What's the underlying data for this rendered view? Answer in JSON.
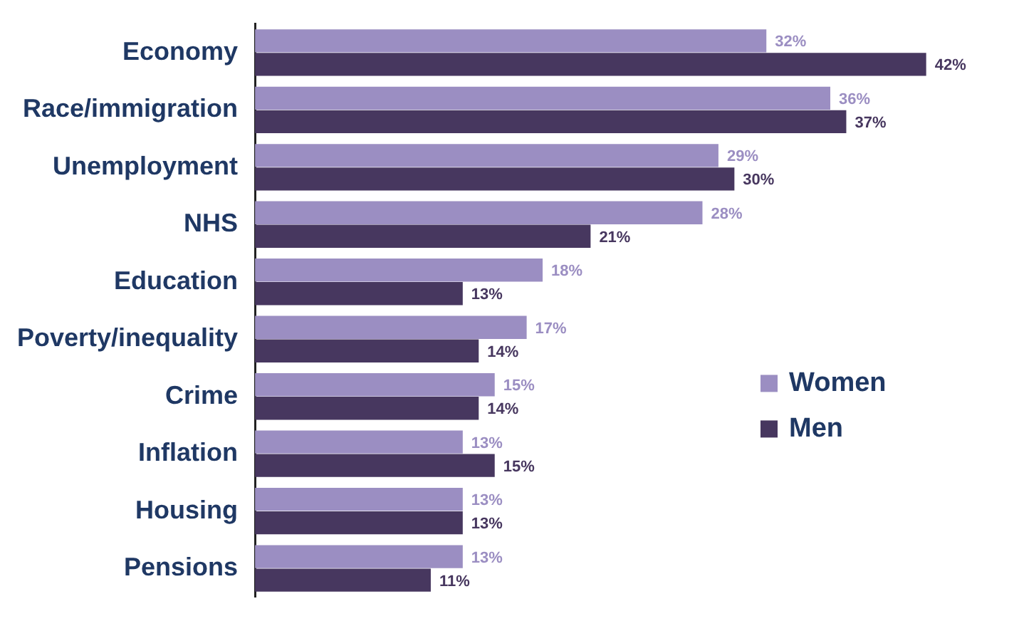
{
  "chart_data": {
    "type": "bar",
    "orientation": "horizontal",
    "categories": [
      "Economy",
      "Race/immigration",
      "Unemployment",
      "NHS",
      "Education",
      "Poverty/inequality",
      "Crime",
      "Inflation",
      "Housing",
      "Pensions"
    ],
    "series": [
      {
        "name": "Women",
        "color": "#9b8ec2",
        "values": [
          32,
          36,
          29,
          28,
          18,
          17,
          15,
          13,
          13,
          13
        ],
        "value_labels": [
          "32%",
          "36%",
          "29%",
          "28%",
          "18%",
          "17%",
          "15%",
          "13%",
          "13%",
          "13%"
        ]
      },
      {
        "name": "Men",
        "color": "#47375f",
        "values": [
          42,
          37,
          30,
          21,
          13,
          14,
          14,
          15,
          13,
          11
        ],
        "value_labels": [
          "42%",
          "37%",
          "30%",
          "21%",
          "13%",
          "14%",
          "14%",
          "15%",
          "13%",
          "11%"
        ]
      }
    ],
    "legend": "bottom right"
  }
}
